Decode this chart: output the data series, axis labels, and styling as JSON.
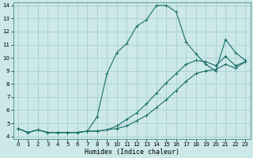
{
  "xlabel": "Humidex (Indice chaleur)",
  "bg_color": "#cce8e8",
  "line_color": "#1a6e6a",
  "grid_color": "#aacece",
  "xlim": [
    -0.5,
    23.5
  ],
  "ylim": [
    3.8,
    14.2
  ],
  "xticks": [
    0,
    1,
    2,
    3,
    4,
    5,
    6,
    7,
    8,
    9,
    10,
    11,
    12,
    13,
    14,
    15,
    16,
    17,
    18,
    19,
    20,
    21,
    22,
    23
  ],
  "yticks": [
    4,
    5,
    6,
    7,
    8,
    9,
    10,
    11,
    12,
    13,
    14
  ],
  "line1_x": [
    0,
    1,
    2,
    3,
    4,
    5,
    6,
    7,
    8,
    9,
    10,
    11,
    12,
    13,
    14,
    15,
    16,
    17,
    18,
    19,
    20,
    21,
    22,
    23
  ],
  "line1_y": [
    4.6,
    4.3,
    4.5,
    4.3,
    4.3,
    4.3,
    4.3,
    4.4,
    4.4,
    4.5,
    4.8,
    5.3,
    5.8,
    6.5,
    7.3,
    8.1,
    8.8,
    9.5,
    9.8,
    9.7,
    9.4,
    10.1,
    9.4,
    9.7
  ],
  "line2_x": [
    0,
    1,
    2,
    3,
    4,
    5,
    6,
    7,
    8,
    9,
    10,
    11,
    12,
    13,
    14,
    15,
    16,
    17,
    18,
    19,
    20,
    21,
    22,
    23
  ],
  "line2_y": [
    4.6,
    4.3,
    4.5,
    4.3,
    4.3,
    4.3,
    4.3,
    4.4,
    4.4,
    4.5,
    4.6,
    4.8,
    5.2,
    5.6,
    6.2,
    6.8,
    7.5,
    8.2,
    8.8,
    9.0,
    9.1,
    9.5,
    9.2,
    9.7
  ],
  "line3_x": [
    0,
    1,
    2,
    3,
    4,
    5,
    6,
    7,
    8,
    9,
    10,
    11,
    12,
    13,
    14,
    15,
    16,
    17,
    18,
    19,
    20,
    21,
    22,
    23
  ],
  "line3_y": [
    4.6,
    4.3,
    4.5,
    4.3,
    4.3,
    4.3,
    4.3,
    4.4,
    5.5,
    8.8,
    10.4,
    11.1,
    12.4,
    12.9,
    14.0,
    14.0,
    13.5,
    11.2,
    10.3,
    9.5,
    9.0,
    11.4,
    10.4,
    9.8
  ]
}
